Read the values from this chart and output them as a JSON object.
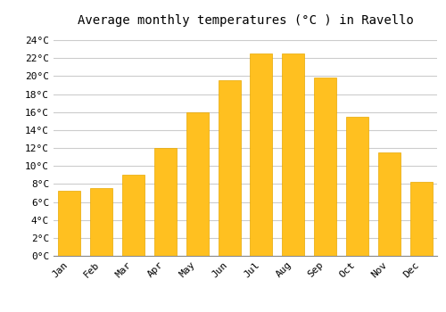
{
  "title": "Average monthly temperatures (°C ) in Ravello",
  "months": [
    "Jan",
    "Feb",
    "Mar",
    "Apr",
    "May",
    "Jun",
    "Jul",
    "Aug",
    "Sep",
    "Oct",
    "Nov",
    "Dec"
  ],
  "values": [
    7.2,
    7.5,
    9.0,
    12.0,
    16.0,
    19.5,
    22.5,
    22.5,
    19.8,
    15.5,
    11.5,
    8.2
  ],
  "bar_color": "#FFC020",
  "bar_edge_color": "#E8A800",
  "background_color": "#FFFFFF",
  "grid_color": "#CCCCCC",
  "ylim": [
    0,
    25
  ],
  "ytick_step": 2,
  "title_fontsize": 10,
  "tick_fontsize": 8,
  "font_family": "monospace"
}
